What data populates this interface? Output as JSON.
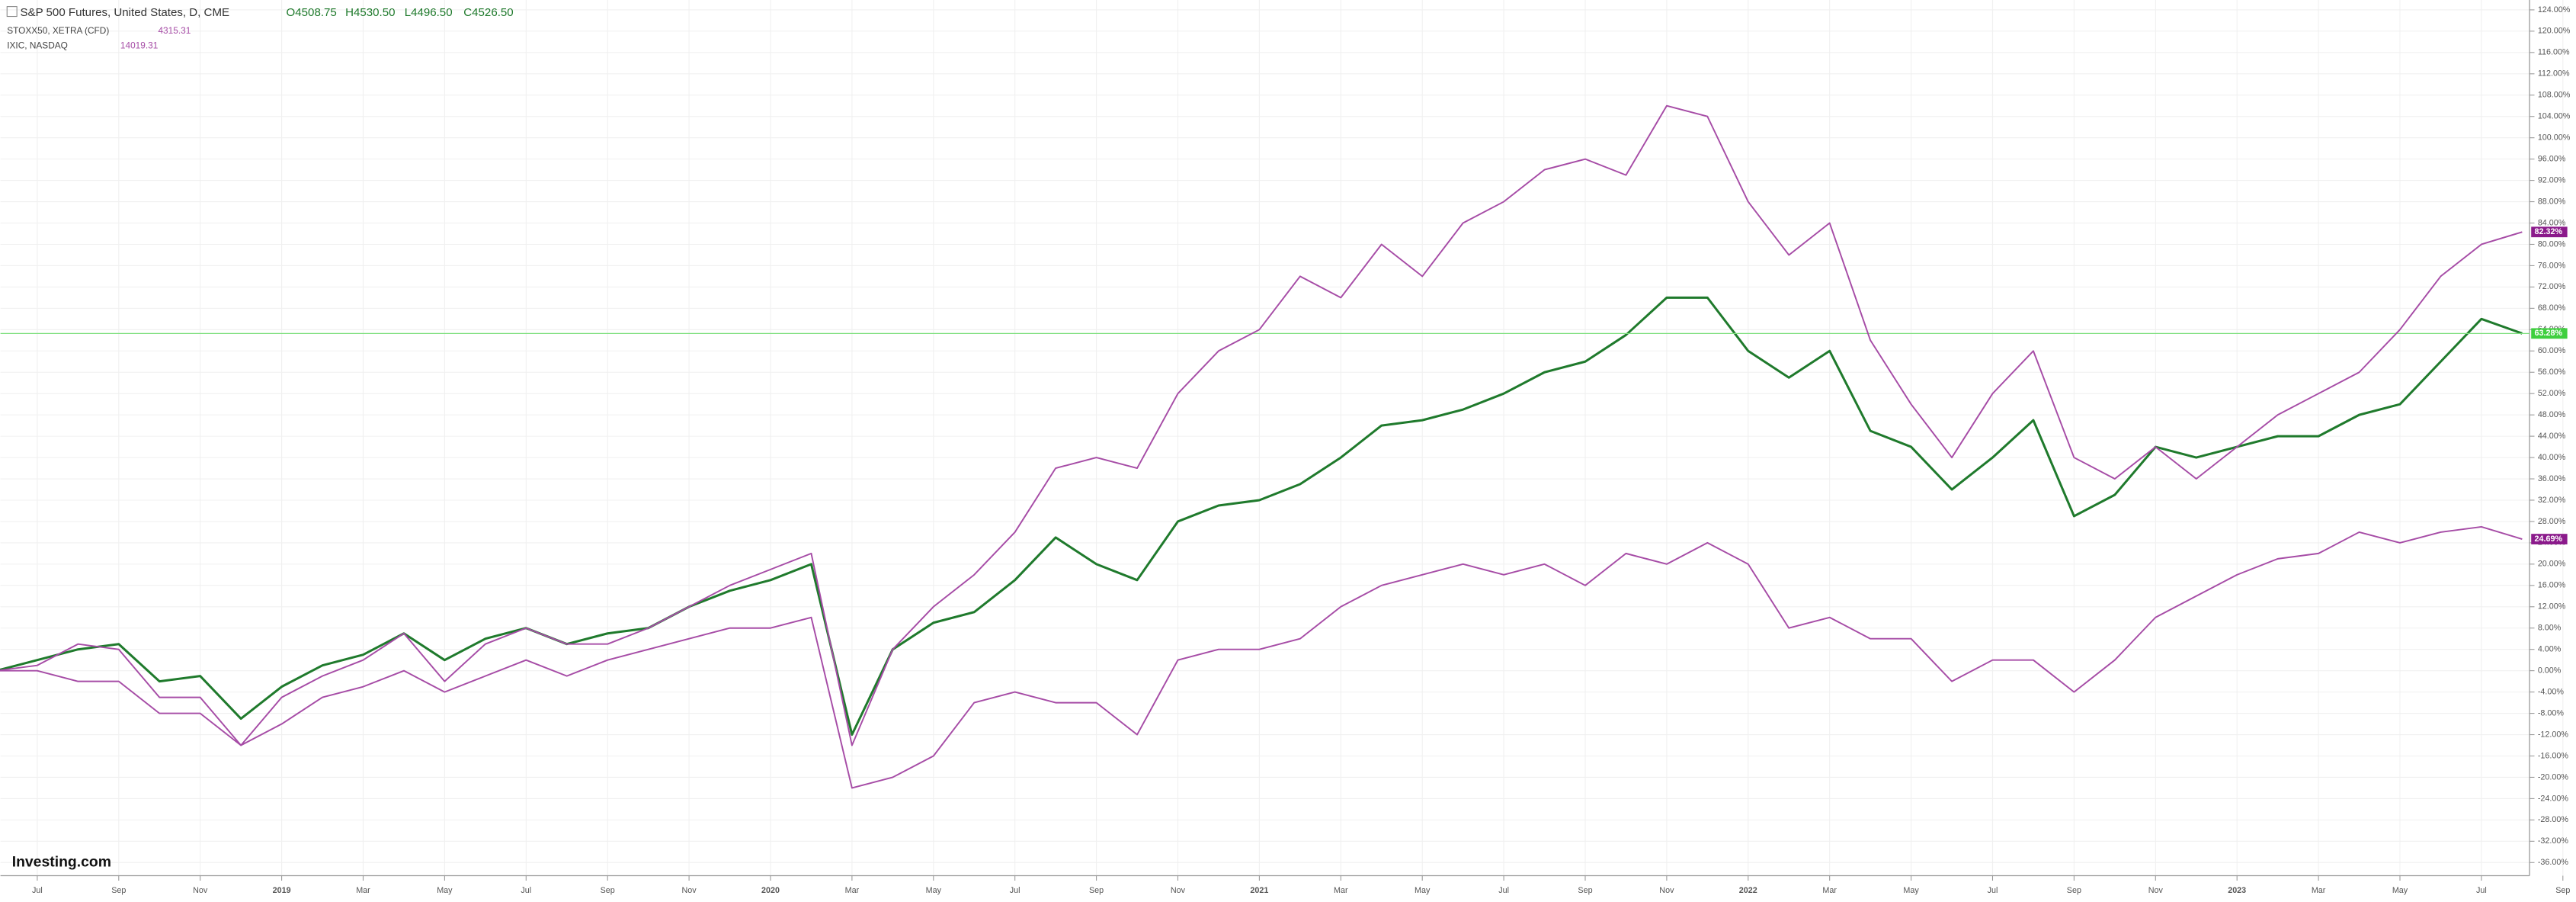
{
  "chart_data": {
    "type": "line",
    "header": {
      "title": "S&P 500 Futures, United States, D, CME",
      "quote": [
        "O4508.75",
        "H4530.50",
        "L4496.50",
        "C4526.50"
      ]
    },
    "logo": "Investing.com",
    "x": [
      "2018-06",
      "2018-07",
      "2018-08",
      "2018-09",
      "2018-10",
      "2018-11",
      "2018-12",
      "2019-01",
      "2019-02",
      "2019-03",
      "2019-04",
      "2019-05",
      "2019-06",
      "2019-07",
      "2019-08",
      "2019-09",
      "2019-10",
      "2019-11",
      "2019-12",
      "2020-01",
      "2020-02",
      "2020-03",
      "2020-04",
      "2020-05",
      "2020-06",
      "2020-07",
      "2020-08",
      "2020-09",
      "2020-10",
      "2020-11",
      "2020-12",
      "2021-01",
      "2021-02",
      "2021-03",
      "2021-04",
      "2021-05",
      "2021-06",
      "2021-07",
      "2021-08",
      "2021-09",
      "2021-10",
      "2021-11",
      "2021-12",
      "2022-01",
      "2022-02",
      "2022-03",
      "2022-04",
      "2022-05",
      "2022-06",
      "2022-07",
      "2022-08",
      "2022-09",
      "2022-10",
      "2022-11",
      "2022-12",
      "2023-01",
      "2023-02",
      "2023-03",
      "2023-04",
      "2023-05",
      "2023-06",
      "2023-07",
      "2023-08"
    ],
    "xlim": [
      "2018-06",
      "2023-09"
    ],
    "xticks": [
      {
        "value": "2018-07",
        "label": "Jul"
      },
      {
        "value": "2018-09",
        "label": "Sep"
      },
      {
        "value": "2018-11",
        "label": "Nov"
      },
      {
        "value": "2019-01",
        "label": "2019"
      },
      {
        "value": "2019-03",
        "label": "Mar"
      },
      {
        "value": "2019-05",
        "label": "May"
      },
      {
        "value": "2019-07",
        "label": "Jul"
      },
      {
        "value": "2019-09",
        "label": "Sep"
      },
      {
        "value": "2019-11",
        "label": "Nov"
      },
      {
        "value": "2020-01",
        "label": "2020"
      },
      {
        "value": "2020-03",
        "label": "Mar"
      },
      {
        "value": "2020-05",
        "label": "May"
      },
      {
        "value": "2020-07",
        "label": "Jul"
      },
      {
        "value": "2020-09",
        "label": "Sep"
      },
      {
        "value": "2020-11",
        "label": "Nov"
      },
      {
        "value": "2021-01",
        "label": "2021"
      },
      {
        "value": "2021-03",
        "label": "Mar"
      },
      {
        "value": "2021-05",
        "label": "May"
      },
      {
        "value": "2021-07",
        "label": "Jul"
      },
      {
        "value": "2021-09",
        "label": "Sep"
      },
      {
        "value": "2021-11",
        "label": "Nov"
      },
      {
        "value": "2022-01",
        "label": "2022"
      },
      {
        "value": "2022-03",
        "label": "Mar"
      },
      {
        "value": "2022-05",
        "label": "May"
      },
      {
        "value": "2022-07",
        "label": "Jul"
      },
      {
        "value": "2022-09",
        "label": "Sep"
      },
      {
        "value": "2022-11",
        "label": "Nov"
      },
      {
        "value": "2023-01",
        "label": "2023"
      },
      {
        "value": "2023-03",
        "label": "Mar"
      },
      {
        "value": "2023-05",
        "label": "May"
      },
      {
        "value": "2023-07",
        "label": "Jul"
      },
      {
        "value": "2023-09",
        "label": "Sep"
      }
    ],
    "ylim": [
      -36,
      124
    ],
    "yticks": [
      {
        "value": 124,
        "label": "124.00%"
      },
      {
        "value": 120,
        "label": "120.00%"
      },
      {
        "value": 116,
        "label": "116.00%"
      },
      {
        "value": 112,
        "label": "112.00%"
      },
      {
        "value": 108,
        "label": "108.00%"
      },
      {
        "value": 104,
        "label": "104.00%"
      },
      {
        "value": 100,
        "label": "100.00%"
      },
      {
        "value": 96,
        "label": "96.00%"
      },
      {
        "value": 92,
        "label": "92.00%"
      },
      {
        "value": 88,
        "label": "88.00%"
      },
      {
        "value": 84,
        "label": "84.00%"
      },
      {
        "value": 80,
        "label": "80.00%"
      },
      {
        "value": 76,
        "label": "76.00%"
      },
      {
        "value": 72,
        "label": "72.00%"
      },
      {
        "value": 68,
        "label": "68.00%"
      },
      {
        "value": 64,
        "label": "64.00%"
      },
      {
        "value": 60,
        "label": "60.00%"
      },
      {
        "value": 56,
        "label": "56.00%"
      },
      {
        "value": 52,
        "label": "52.00%"
      },
      {
        "value": 48,
        "label": "48.00%"
      },
      {
        "value": 44,
        "label": "44.00%"
      },
      {
        "value": 40,
        "label": "40.00%"
      },
      {
        "value": 36,
        "label": "36.00%"
      },
      {
        "value": 32,
        "label": "32.00%"
      },
      {
        "value": 28,
        "label": "28.00%"
      },
      {
        "value": 24,
        "label": "24.00%"
      },
      {
        "value": 20,
        "label": "20.00%"
      },
      {
        "value": 16,
        "label": "16.00%"
      },
      {
        "value": 12,
        "label": "12.00%"
      },
      {
        "value": 8,
        "label": "8.00%"
      },
      {
        "value": 4,
        "label": "4.00%"
      },
      {
        "value": 0,
        "label": "0.00%"
      },
      {
        "value": -4,
        "label": "-4.00%"
      },
      {
        "value": -8,
        "label": "-8.00%"
      },
      {
        "value": -12,
        "label": "-12.00%"
      },
      {
        "value": -16,
        "label": "-16.00%"
      },
      {
        "value": -20,
        "label": "-20.00%"
      },
      {
        "value": -24,
        "label": "-24.00%"
      },
      {
        "value": -28,
        "label": "-28.00%"
      },
      {
        "value": -32,
        "label": "-32.00%"
      },
      {
        "value": -36,
        "label": "-36.00%"
      }
    ],
    "grid": true,
    "series": [
      {
        "name": "S&P 500 Futures, United States, D, CME",
        "color": "#1f7a2c",
        "badge_color": "#3ecf3e",
        "values": [
          0,
          2,
          4,
          5,
          -2,
          -1,
          -9,
          -3,
          1,
          3,
          7,
          2,
          6,
          8,
          5,
          7,
          8,
          12,
          15,
          17,
          20,
          -12,
          4,
          9,
          11,
          17,
          25,
          20,
          17,
          28,
          31,
          32,
          35,
          40,
          46,
          47,
          49,
          52,
          56,
          58,
          63,
          70,
          70,
          60,
          55,
          60,
          45,
          42,
          34,
          40,
          47,
          29,
          33,
          42,
          40,
          42,
          44,
          44,
          48,
          50,
          58,
          66,
          63.28
        ],
        "last_value_label": "63.28%"
      },
      {
        "name": "STOXX50, XETRA (CFD)",
        "color": "#a64ca6",
        "badge_color": "#8b1a8b",
        "quote": "4315.31",
        "values": [
          0,
          0,
          -2,
          -2,
          -8,
          -8,
          -14,
          -10,
          -5,
          -3,
          0,
          -4,
          -1,
          2,
          -1,
          2,
          4,
          6,
          8,
          8,
          10,
          -22,
          -20,
          -16,
          -6,
          -4,
          -6,
          -6,
          -12,
          2,
          4,
          4,
          6,
          12,
          16,
          18,
          20,
          18,
          20,
          16,
          22,
          20,
          24,
          20,
          8,
          10,
          6,
          6,
          -2,
          2,
          2,
          -4,
          2,
          10,
          14,
          18,
          21,
          22,
          26,
          24,
          26,
          27,
          24.69
        ],
        "last_value_label": "24.69%"
      },
      {
        "name": "IXIC, NASDAQ",
        "color": "#a64ca6",
        "badge_color": "#8b1a8b",
        "quote": "14019.31",
        "values": [
          0,
          1,
          5,
          4,
          -5,
          -5,
          -14,
          -5,
          -1,
          2,
          7,
          -2,
          5,
          8,
          5,
          5,
          8,
          12,
          16,
          19,
          22,
          -14,
          4,
          12,
          18,
          26,
          38,
          40,
          38,
          52,
          60,
          64,
          74,
          70,
          80,
          74,
          84,
          88,
          94,
          96,
          93,
          106,
          104,
          88,
          78,
          84,
          62,
          50,
          40,
          52,
          60,
          40,
          36,
          42,
          36,
          42,
          48,
          52,
          56,
          64,
          74,
          80,
          82.32
        ],
        "last_value_label": "82.32%"
      }
    ]
  }
}
